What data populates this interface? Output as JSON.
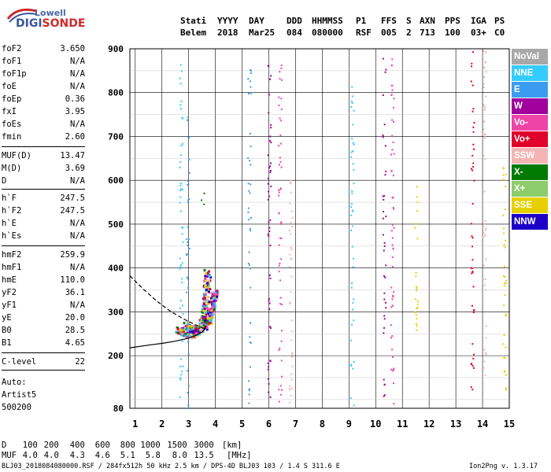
{
  "logo": {
    "line1": "Lowell",
    "line2a": "DIGI",
    "line2b": "SONDE"
  },
  "header": {
    "cols": [
      {
        "h": "Stati",
        "v": "Belem"
      },
      {
        "h": "YYYY",
        "v": "2018"
      },
      {
        "h": "DAY",
        "v": "Mar25"
      },
      {
        "h": "DDD",
        "v": "084"
      },
      {
        "h": "HHMMSS",
        "v": "080000"
      },
      {
        "h": "P1",
        "v": "RSF"
      },
      {
        "h": "FFS",
        "v": "005"
      },
      {
        "h": "S",
        "v": "2"
      },
      {
        "h": "AXN",
        "v": "713"
      },
      {
        "h": "PPS",
        "v": "100"
      },
      {
        "h": "IGA",
        "v": "03+"
      },
      {
        "h": "PS",
        "v": "C0"
      }
    ]
  },
  "params": [
    {
      "label": "foF2",
      "value": "3.650"
    },
    {
      "label": "foF1",
      "value": "N/A"
    },
    {
      "label": "foF1p",
      "value": "N/A"
    },
    {
      "label": "foE",
      "value": "N/A"
    },
    {
      "label": "foEp",
      "value": "0.36"
    },
    {
      "label": "fxI",
      "value": "3.95"
    },
    {
      "label": "foEs",
      "value": "N/A"
    },
    {
      "label": "fmin",
      "value": "2.60"
    },
    {
      "label": "MUF(D)",
      "value": "13.47"
    },
    {
      "label": "M(D)",
      "value": "3.69"
    },
    {
      "label": "D",
      "value": "N/A"
    },
    {
      "label": "h`F",
      "value": "247.5"
    },
    {
      "label": "h`F2",
      "value": "247.5"
    },
    {
      "label": "h`E",
      "value": "N/A"
    },
    {
      "label": "h`Es",
      "value": "N/A"
    },
    {
      "label": "hmF2",
      "value": "259.9"
    },
    {
      "label": "hmF1",
      "value": "N/A"
    },
    {
      "label": "hmE",
      "value": "110.0"
    },
    {
      "label": "yF2",
      "value": "36.1"
    },
    {
      "label": "yF1",
      "value": "N/A"
    },
    {
      "label": "yE",
      "value": "20.0"
    },
    {
      "label": "B0",
      "value": "28.5"
    },
    {
      "label": "B1",
      "value": "4.65"
    },
    {
      "label": "C-level",
      "value": "22"
    }
  ],
  "auto_lines": [
    "Auto:",
    "Artist5",
    "500200"
  ],
  "legend": [
    {
      "label": "NoVal",
      "color": "#a8a8a8"
    },
    {
      "label": "NNE",
      "color": "#34ccff"
    },
    {
      "label": "E",
      "color": "#3a9cf0"
    },
    {
      "label": "W",
      "color": "#a0009c"
    },
    {
      "label": "Vo-",
      "color": "#ee44a8"
    },
    {
      "label": "Vo+",
      "color": "#e0002a"
    },
    {
      "label": "SSW",
      "color": "#f5b4b4"
    },
    {
      "label": "X-",
      "color": "#007a00"
    },
    {
      "label": "X+",
      "color": "#8ccc6a"
    },
    {
      "label": "SSE",
      "color": "#e6d000"
    },
    {
      "label": "NNW",
      "color": "#1c00c8"
    }
  ],
  "distance_table": {
    "d_label": "D",
    "d_values": [
      "100",
      "200",
      "400",
      "600",
      "800",
      "1000",
      "1500",
      "3000"
    ],
    "d_unit": "[km]",
    "muf_label": "MUF",
    "muf_values": [
      "4.0",
      "4.0",
      "4.3",
      "4.6",
      "5.1",
      "5.8",
      "8.0",
      "13.5"
    ],
    "muf_unit": "[MHz]"
  },
  "footer": {
    "left": "BLJ03_2018084080000.RSF / 284fx512h 50 kHz 2.5 km / DPS-4D BLJ03 103 / 1.4 S 311.6 E",
    "right": "Ion2Png v. 1.3.17"
  },
  "chart_data": {
    "type": "scatter",
    "xlim": [
      0.8,
      15.0
    ],
    "ylim": [
      80,
      900
    ],
    "x_ticks": [
      1,
      2,
      3,
      4,
      5,
      6,
      7,
      8,
      9,
      10,
      11,
      12,
      13,
      14,
      15
    ],
    "x_tick_labels": [
      "1",
      "2",
      "3",
      "4",
      "5",
      "6",
      "7",
      "8",
      "9",
      "10",
      "11",
      "12",
      "13",
      "14",
      "15"
    ],
    "y_ticks": [
      80,
      200,
      300,
      400,
      500,
      600,
      700,
      800,
      900
    ],
    "y_tick_labels": [
      "80",
      "200",
      "300",
      "400",
      "500",
      "600",
      "700",
      "800",
      "900"
    ],
    "grid": true,
    "profile_curve": [
      [
        0.8,
        218
      ],
      [
        1.5,
        224
      ],
      [
        2.0,
        228
      ],
      [
        2.5,
        233
      ],
      [
        3.0,
        240
      ],
      [
        3.3,
        247
      ],
      [
        3.5,
        254
      ],
      [
        3.6,
        260
      ],
      [
        3.65,
        268
      ]
    ],
    "profile_dashed": [
      [
        0.8,
        382
      ],
      [
        1.3,
        352
      ],
      [
        1.8,
        325
      ],
      [
        2.3,
        302
      ],
      [
        2.8,
        284
      ],
      [
        3.2,
        272
      ],
      [
        3.5,
        264
      ],
      [
        3.65,
        260
      ]
    ],
    "trace_o": [
      [
        2.6,
        262
      ],
      [
        2.8,
        255
      ],
      [
        3.0,
        250
      ],
      [
        3.2,
        252
      ],
      [
        3.35,
        258
      ],
      [
        3.45,
        270
      ],
      [
        3.55,
        290
      ],
      [
        3.6,
        320
      ],
      [
        3.65,
        360
      ],
      [
        3.67,
        395
      ]
    ],
    "trace_x": [
      [
        2.9,
        272
      ],
      [
        3.1,
        262
      ],
      [
        3.3,
        260
      ],
      [
        3.5,
        266
      ],
      [
        3.7,
        280
      ],
      [
        3.8,
        300
      ],
      [
        3.9,
        330
      ],
      [
        3.95,
        350
      ]
    ],
    "interference_columns": [
      {
        "x": 2.7,
        "ymin": 80,
        "ymax": 900,
        "color": "#34ccff"
      },
      {
        "x": 2.95,
        "ymin": 80,
        "ymax": 760,
        "color": "#3a9cf0"
      },
      {
        "x": 3.5,
        "ymin": 480,
        "ymax": 620,
        "color": "#007a00"
      },
      {
        "x": 5.25,
        "ymin": 80,
        "ymax": 880,
        "color": "#3a9cf0"
      },
      {
        "x": 6.0,
        "ymin": 80,
        "ymax": 900,
        "color": "#a0009c"
      },
      {
        "x": 6.4,
        "ymin": 80,
        "ymax": 880,
        "color": "#ee44a8"
      },
      {
        "x": 6.8,
        "ymin": 80,
        "ymax": 640,
        "color": "#f5b4b4"
      },
      {
        "x": 9.1,
        "ymin": 80,
        "ymax": 830,
        "color": "#34ccff"
      },
      {
        "x": 10.3,
        "ymin": 80,
        "ymax": 900,
        "color": "#a0009c"
      },
      {
        "x": 10.6,
        "ymin": 80,
        "ymax": 880,
        "color": "#ee44a8"
      },
      {
        "x": 11.5,
        "ymin": 260,
        "ymax": 620,
        "color": "#e6d000"
      },
      {
        "x": 13.6,
        "ymin": 120,
        "ymax": 900,
        "color": "#e0002a"
      },
      {
        "x": 14.05,
        "ymin": 120,
        "ymax": 900,
        "color": "#f5b4b4"
      },
      {
        "x": 14.8,
        "ymin": 120,
        "ymax": 640,
        "color": "#e6d000"
      }
    ]
  }
}
